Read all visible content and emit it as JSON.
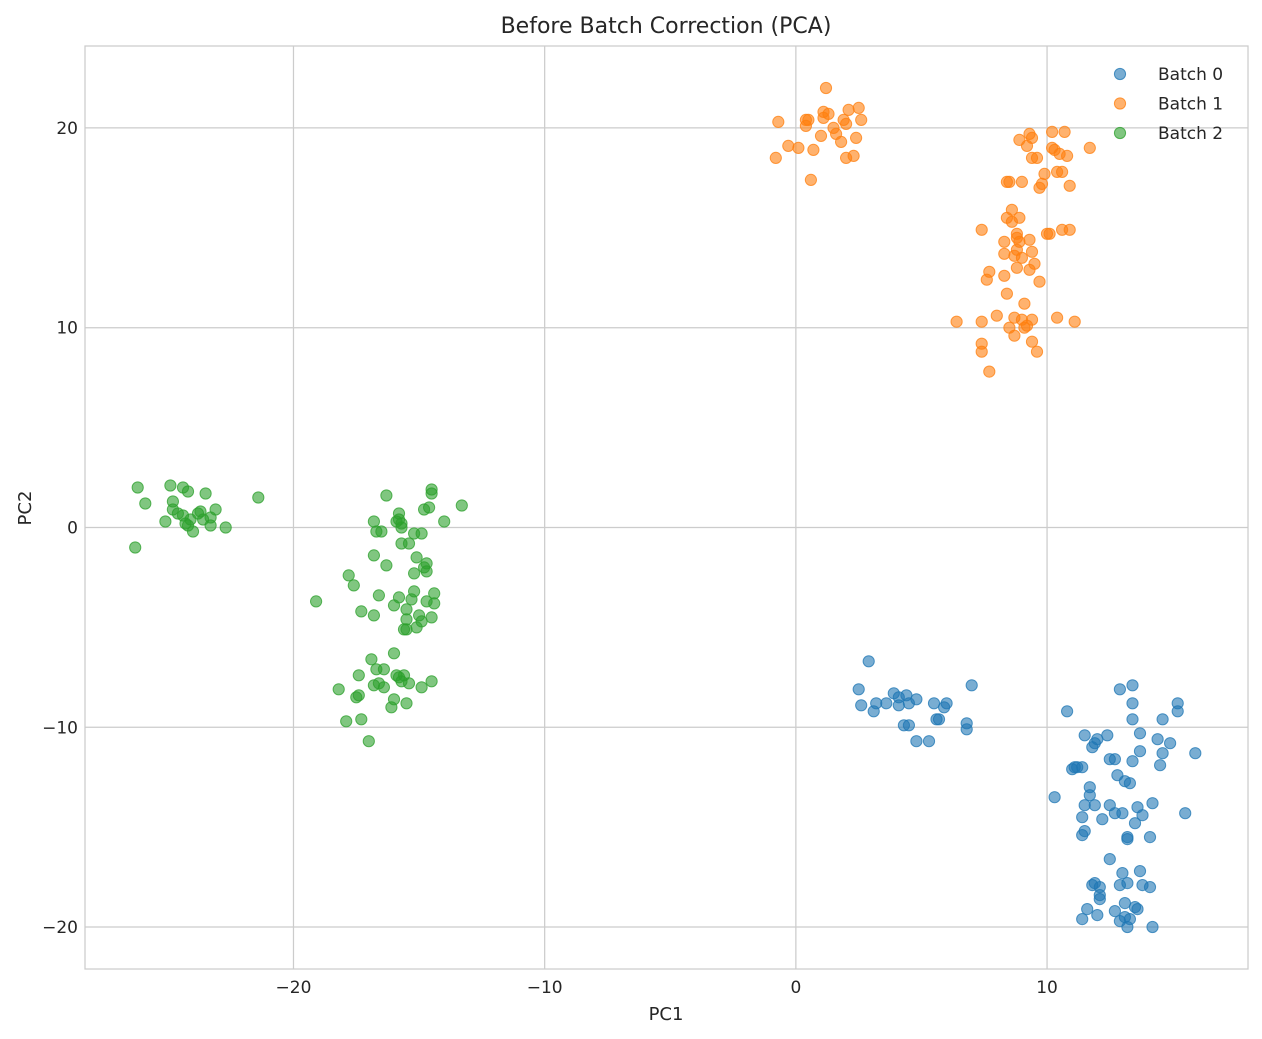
{
  "chart_data": {
    "type": "scatter",
    "title": "Before Batch Correction (PCA)",
    "xlabel": "PC1",
    "ylabel": "PC2",
    "xlim": [
      -28.3,
      18.0
    ],
    "ylim": [
      -22.1,
      24.1
    ],
    "xticks": [
      -20,
      -10,
      0,
      10
    ],
    "yticks": [
      -20,
      -10,
      0,
      10,
      20
    ],
    "xtick_labels": [
      "−20",
      "−10",
      "0",
      "10"
    ],
    "ytick_labels": [
      "−20",
      "−10",
      "0",
      "10",
      "20"
    ],
    "grid": true,
    "legend_position": "top-right",
    "series": [
      {
        "name": "Batch 0",
        "color": "#1f77b4",
        "points": [
          [
            2.9,
            -6.7
          ],
          [
            2.5,
            -8.1
          ],
          [
            2.6,
            -8.9
          ],
          [
            3.1,
            -9.2
          ],
          [
            3.2,
            -8.8
          ],
          [
            3.6,
            -8.8
          ],
          [
            3.9,
            -8.3
          ],
          [
            4.1,
            -8.5
          ],
          [
            4.1,
            -8.9
          ],
          [
            4.4,
            -8.4
          ],
          [
            4.5,
            -8.8
          ],
          [
            4.8,
            -8.6
          ],
          [
            4.3,
            -9.9
          ],
          [
            4.5,
            -9.9
          ],
          [
            4.8,
            -10.7
          ],
          [
            5.3,
            -10.7
          ],
          [
            5.5,
            -8.8
          ],
          [
            5.6,
            -9.6
          ],
          [
            5.7,
            -9.6
          ],
          [
            5.9,
            -9.0
          ],
          [
            6.0,
            -8.8
          ],
          [
            6.8,
            -9.8
          ],
          [
            6.8,
            -10.1
          ],
          [
            7.0,
            -7.9
          ],
          [
            10.3,
            -13.5
          ],
          [
            10.8,
            -9.2
          ],
          [
            11.0,
            -12.1
          ],
          [
            11.2,
            -12.0
          ],
          [
            11.4,
            -15.4
          ],
          [
            11.4,
            -14.5
          ],
          [
            11.4,
            -12.0
          ],
          [
            11.5,
            -10.4
          ],
          [
            11.5,
            -13.9
          ],
          [
            11.5,
            -15.2
          ],
          [
            11.7,
            -13.4
          ],
          [
            11.7,
            -13.0
          ],
          [
            11.8,
            -11.0
          ],
          [
            12.0,
            -10.6
          ],
          [
            11.9,
            -13.9
          ],
          [
            12.2,
            -14.6
          ],
          [
            12.4,
            -10.4
          ],
          [
            12.5,
            -13.9
          ],
          [
            12.5,
            -11.6
          ],
          [
            12.7,
            -14.3
          ],
          [
            12.7,
            -11.6
          ],
          [
            12.8,
            -12.4
          ],
          [
            12.9,
            -8.1
          ],
          [
            13.0,
            -14.3
          ],
          [
            13.1,
            -12.7
          ],
          [
            13.2,
            -15.6
          ],
          [
            13.3,
            -12.8
          ],
          [
            13.4,
            -11.7
          ],
          [
            13.4,
            -9.6
          ],
          [
            13.4,
            -8.8
          ],
          [
            13.4,
            -7.9
          ],
          [
            13.5,
            -14.8
          ],
          [
            13.6,
            -14.0
          ],
          [
            13.7,
            -11.2
          ],
          [
            13.8,
            -14.4
          ],
          [
            13.7,
            -10.3
          ],
          [
            14.1,
            -15.5
          ],
          [
            14.2,
            -13.8
          ],
          [
            14.4,
            -10.6
          ],
          [
            14.5,
            -11.9
          ],
          [
            14.6,
            -11.3
          ],
          [
            14.6,
            -9.6
          ],
          [
            14.9,
            -10.8
          ],
          [
            15.2,
            -9.2
          ],
          [
            15.2,
            -8.8
          ],
          [
            15.5,
            -14.3
          ],
          [
            15.9,
            -11.3
          ],
          [
            11.4,
            -19.6
          ],
          [
            11.6,
            -19.1
          ],
          [
            11.8,
            -17.9
          ],
          [
            11.9,
            -17.8
          ],
          [
            12.0,
            -19.4
          ],
          [
            12.1,
            -18.6
          ],
          [
            12.1,
            -18.4
          ],
          [
            12.1,
            -18.0
          ],
          [
            12.5,
            -16.6
          ],
          [
            12.7,
            -19.2
          ],
          [
            12.9,
            -19.7
          ],
          [
            12.9,
            -17.9
          ],
          [
            13.0,
            -17.3
          ],
          [
            13.1,
            -19.5
          ],
          [
            13.1,
            -18.8
          ],
          [
            13.2,
            -20.0
          ],
          [
            13.2,
            -17.8
          ],
          [
            13.3,
            -19.6
          ],
          [
            13.5,
            -19.0
          ],
          [
            13.6,
            -19.1
          ],
          [
            13.7,
            -17.2
          ],
          [
            13.8,
            -17.9
          ],
          [
            14.1,
            -18.0
          ],
          [
            14.2,
            -20.0
          ],
          [
            13.2,
            -15.5
          ],
          [
            11.1,
            -12.0
          ],
          [
            11.9,
            -10.8
          ]
        ]
      },
      {
        "name": "Batch 1",
        "color": "#ff7f0e",
        "points": [
          [
            -0.8,
            18.5
          ],
          [
            -0.7,
            20.3
          ],
          [
            -0.3,
            19.1
          ],
          [
            0.1,
            19.0
          ],
          [
            0.4,
            20.4
          ],
          [
            0.4,
            20.1
          ],
          [
            0.5,
            20.4
          ],
          [
            0.6,
            17.4
          ],
          [
            0.7,
            18.9
          ],
          [
            1.0,
            19.6
          ],
          [
            1.1,
            20.5
          ],
          [
            1.1,
            20.8
          ],
          [
            1.2,
            22.0
          ],
          [
            1.3,
            20.7
          ],
          [
            1.5,
            20.0
          ],
          [
            1.6,
            19.7
          ],
          [
            1.8,
            19.3
          ],
          [
            1.9,
            20.4
          ],
          [
            2.0,
            20.2
          ],
          [
            2.0,
            18.5
          ],
          [
            2.1,
            20.9
          ],
          [
            2.3,
            18.6
          ],
          [
            2.4,
            19.5
          ],
          [
            2.5,
            21.0
          ],
          [
            2.6,
            20.4
          ],
          [
            6.4,
            10.3
          ],
          [
            7.4,
            14.9
          ],
          [
            7.4,
            10.3
          ],
          [
            7.4,
            9.2
          ],
          [
            7.4,
            8.8
          ],
          [
            7.6,
            12.4
          ],
          [
            7.7,
            12.8
          ],
          [
            7.7,
            7.8
          ],
          [
            8.0,
            10.6
          ],
          [
            8.3,
            13.7
          ],
          [
            8.3,
            14.3
          ],
          [
            8.3,
            12.6
          ],
          [
            8.4,
            11.7
          ],
          [
            8.4,
            15.5
          ],
          [
            8.4,
            17.3
          ],
          [
            8.5,
            17.3
          ],
          [
            8.5,
            10.0
          ],
          [
            8.6,
            15.9
          ],
          [
            8.6,
            15.3
          ],
          [
            8.7,
            9.6
          ],
          [
            8.7,
            10.5
          ],
          [
            8.8,
            13.0
          ],
          [
            8.8,
            13.9
          ],
          [
            8.8,
            14.7
          ],
          [
            8.9,
            14.3
          ],
          [
            8.9,
            19.4
          ],
          [
            8.9,
            15.5
          ],
          [
            9.0,
            17.3
          ],
          [
            9.0,
            13.5
          ],
          [
            9.0,
            10.4
          ],
          [
            9.1,
            11.2
          ],
          [
            9.1,
            10.0
          ],
          [
            9.2,
            19.1
          ],
          [
            9.3,
            14.4
          ],
          [
            9.3,
            12.9
          ],
          [
            9.3,
            19.7
          ],
          [
            9.4,
            19.5
          ],
          [
            9.4,
            18.5
          ],
          [
            9.4,
            13.8
          ],
          [
            9.4,
            10.4
          ],
          [
            9.4,
            9.3
          ],
          [
            9.5,
            13.2
          ],
          [
            9.6,
            18.5
          ],
          [
            9.6,
            8.8
          ],
          [
            9.7,
            12.3
          ],
          [
            9.7,
            17.0
          ],
          [
            9.8,
            17.2
          ],
          [
            9.9,
            17.7
          ],
          [
            10.0,
            14.7
          ],
          [
            10.1,
            14.7
          ],
          [
            10.2,
            19.8
          ],
          [
            10.2,
            19.0
          ],
          [
            10.3,
            18.9
          ],
          [
            10.4,
            17.8
          ],
          [
            10.4,
            10.5
          ],
          [
            10.5,
            18.7
          ],
          [
            10.6,
            14.9
          ],
          [
            10.6,
            17.8
          ],
          [
            10.7,
            19.8
          ],
          [
            10.8,
            18.6
          ],
          [
            10.9,
            17.1
          ],
          [
            10.9,
            14.9
          ],
          [
            11.1,
            10.3
          ],
          [
            11.7,
            19.0
          ],
          [
            8.8,
            14.5
          ],
          [
            8.7,
            13.6
          ],
          [
            9.2,
            10.1
          ]
        ]
      },
      {
        "name": "Batch 2",
        "color": "#2ca02c",
        "points": [
          [
            -26.3,
            -1.0
          ],
          [
            -26.2,
            2.0
          ],
          [
            -25.9,
            1.2
          ],
          [
            -25.1,
            0.3
          ],
          [
            -24.9,
            2.1
          ],
          [
            -24.8,
            1.3
          ],
          [
            -24.8,
            0.9
          ],
          [
            -24.6,
            0.7
          ],
          [
            -24.4,
            0.6
          ],
          [
            -24.4,
            2.0
          ],
          [
            -24.3,
            0.2
          ],
          [
            -24.2,
            0.1
          ],
          [
            -24.2,
            1.8
          ],
          [
            -24.1,
            0.4
          ],
          [
            -24.0,
            -0.2
          ],
          [
            -23.8,
            0.7
          ],
          [
            -23.7,
            0.8
          ],
          [
            -23.6,
            0.4
          ],
          [
            -23.5,
            1.7
          ],
          [
            -23.3,
            0.5
          ],
          [
            -23.3,
            0.1
          ],
          [
            -23.1,
            0.9
          ],
          [
            -22.7,
            0.0
          ],
          [
            -21.4,
            1.5
          ],
          [
            -19.1,
            -3.7
          ],
          [
            -17.8,
            -2.4
          ],
          [
            -17.6,
            -2.9
          ],
          [
            -17.3,
            -4.2
          ],
          [
            -16.8,
            0.3
          ],
          [
            -16.8,
            -1.4
          ],
          [
            -16.8,
            -4.4
          ],
          [
            -16.7,
            -0.2
          ],
          [
            -16.6,
            -3.4
          ],
          [
            -16.5,
            -0.2
          ],
          [
            -16.3,
            1.6
          ],
          [
            -16.3,
            -1.9
          ],
          [
            -16.0,
            -3.9
          ],
          [
            -15.9,
            0.3
          ],
          [
            -15.8,
            -3.5
          ],
          [
            -15.8,
            0.7
          ],
          [
            -15.8,
            0.4
          ],
          [
            -15.7,
            -0.8
          ],
          [
            -15.7,
            0.0
          ],
          [
            -15.7,
            0.2
          ],
          [
            -15.6,
            -5.1
          ],
          [
            -15.5,
            -5.1
          ],
          [
            -15.5,
            -4.1
          ],
          [
            -15.5,
            -4.6
          ],
          [
            -15.4,
            -0.8
          ],
          [
            -15.3,
            -3.6
          ],
          [
            -15.2,
            -0.3
          ],
          [
            -15.2,
            -3.2
          ],
          [
            -15.2,
            -2.3
          ],
          [
            -15.1,
            -1.5
          ],
          [
            -15.1,
            -5.0
          ],
          [
            -15.0,
            -4.4
          ],
          [
            -14.9,
            -0.3
          ],
          [
            -14.9,
            -4.7
          ],
          [
            -14.8,
            -2.0
          ],
          [
            -14.8,
            0.9
          ],
          [
            -14.7,
            -1.8
          ],
          [
            -14.7,
            -3.7
          ],
          [
            -14.7,
            -2.2
          ],
          [
            -14.6,
            1.0
          ],
          [
            -14.5,
            1.7
          ],
          [
            -14.5,
            1.9
          ],
          [
            -14.5,
            -4.5
          ],
          [
            -14.4,
            -3.3
          ],
          [
            -14.4,
            -3.8
          ],
          [
            -14.0,
            0.3
          ],
          [
            -13.3,
            1.1
          ],
          [
            -18.2,
            -8.1
          ],
          [
            -17.9,
            -9.7
          ],
          [
            -17.5,
            -8.5
          ],
          [
            -17.4,
            -8.4
          ],
          [
            -17.4,
            -7.4
          ],
          [
            -17.3,
            -9.6
          ],
          [
            -17.0,
            -10.7
          ],
          [
            -16.9,
            -6.6
          ],
          [
            -16.8,
            -7.9
          ],
          [
            -16.7,
            -7.1
          ],
          [
            -16.6,
            -7.8
          ],
          [
            -16.4,
            -7.1
          ],
          [
            -16.4,
            -8.0
          ],
          [
            -16.1,
            -9.0
          ],
          [
            -16.0,
            -8.6
          ],
          [
            -16.0,
            -6.3
          ],
          [
            -15.9,
            -7.4
          ],
          [
            -15.8,
            -7.5
          ],
          [
            -15.7,
            -7.7
          ],
          [
            -15.6,
            -7.4
          ],
          [
            -15.5,
            -8.8
          ],
          [
            -15.4,
            -7.8
          ],
          [
            -14.9,
            -8.0
          ],
          [
            -14.5,
            -7.7
          ]
        ]
      }
    ]
  }
}
